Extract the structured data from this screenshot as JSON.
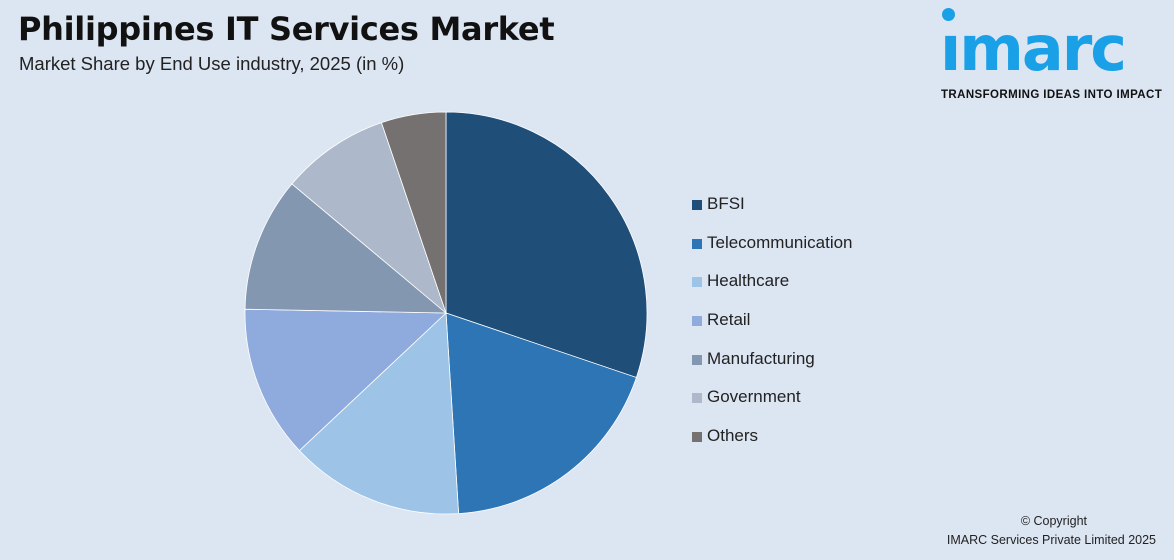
{
  "header": {
    "title": "Philippines IT Services Market",
    "subtitle": "Market Share by End Use industry, 2025 (in %)"
  },
  "logo": {
    "word": "ımarc",
    "tagline": "TRANSFORMING IDEAS INTO IMPACT",
    "color": "#1aa0e6"
  },
  "chart_data": {
    "type": "pie",
    "title": "Philippines IT Services Market",
    "subtitle": "Market Share by End Use industry, 2025 (in %)",
    "legend_position": "right",
    "slices": [
      {
        "label": "BFSI",
        "value": 30.2,
        "color": "#1f4e79"
      },
      {
        "label": "Telecommunication",
        "value": 18.8,
        "color": "#2e75b6"
      },
      {
        "label": "Healthcare",
        "value": 14.0,
        "color": "#9dc3e6"
      },
      {
        "label": "Retail",
        "value": 12.3,
        "color": "#8faadc"
      },
      {
        "label": "Manufacturing",
        "value": 10.8,
        "color": "#8497b0"
      },
      {
        "label": "Government",
        "value": 8.7,
        "color": "#adb9ca"
      },
      {
        "label": "Others",
        "value": 5.2,
        "color": "#767171"
      }
    ]
  },
  "footer": {
    "copyright_line1": "© Copyright",
    "copyright_line2": "IMARC Services Private Limited 2025"
  }
}
